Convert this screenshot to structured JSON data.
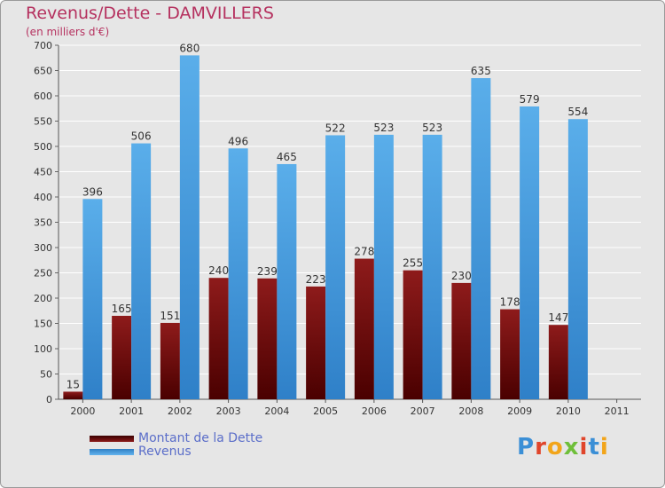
{
  "title": "Revenus/Dette - DAMVILLERS",
  "subtitle": "(en milliers d'€)",
  "logo_text": "Proxiti",
  "chart_data": {
    "type": "bar",
    "title": "Revenus/Dette - DAMVILLERS",
    "subtitle": "(en milliers d'€)",
    "categories": [
      "2000",
      "2001",
      "2002",
      "2003",
      "2004",
      "2005",
      "2006",
      "2007",
      "2008",
      "2009",
      "2010",
      "2011"
    ],
    "series": [
      {
        "name": "Montant de la Dette",
        "color": "#7a0f0f",
        "values": [
          15,
          165,
          151,
          240,
          239,
          223,
          278,
          255,
          230,
          178,
          147,
          null
        ]
      },
      {
        "name": "Revenus",
        "color": "#4a9fe0",
        "values": [
          396,
          506,
          680,
          496,
          465,
          522,
          523,
          523,
          635,
          579,
          554,
          null
        ]
      }
    ],
    "ylim": [
      0,
      700
    ],
    "yticks": [
      0,
      50,
      100,
      150,
      200,
      250,
      300,
      350,
      400,
      450,
      500,
      550,
      600,
      650,
      700
    ],
    "grid": true,
    "legend_position": "bottom-left"
  }
}
